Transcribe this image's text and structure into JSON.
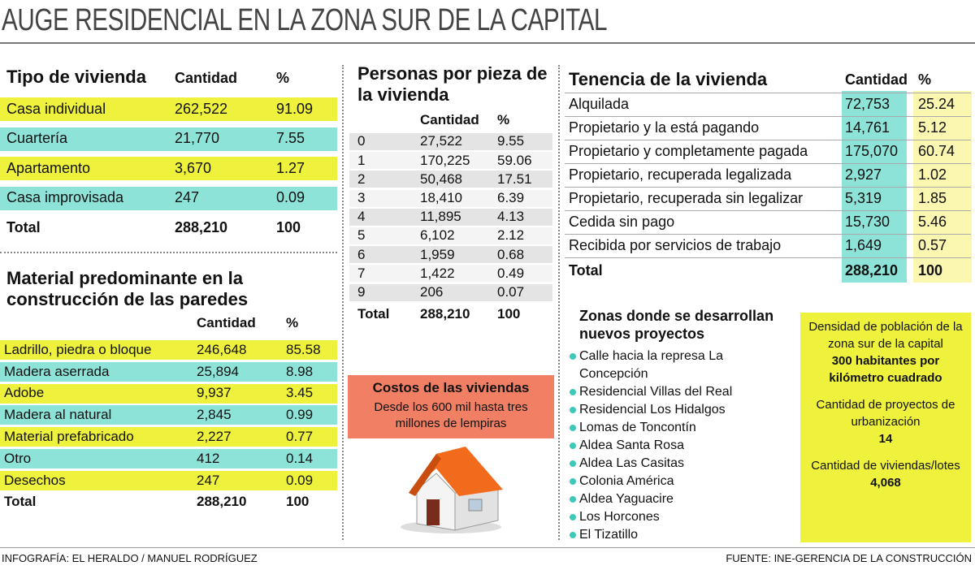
{
  "title": "AUGE RESIDENCIAL EN LA ZONA SUR DE LA CAPITAL",
  "tipo": {
    "title": "Tipo de vivienda",
    "headers": [
      "Cantidad",
      "%"
    ],
    "rows": [
      [
        "Casa individual",
        "262,522",
        "91.09"
      ],
      [
        "Cuartería",
        "21,770",
        "7.55"
      ],
      [
        "Apartamento",
        "3,670",
        "1.27"
      ],
      [
        "Casa improvisada",
        "247",
        "0.09"
      ]
    ],
    "total": [
      "Total",
      "288,210",
      "100"
    ]
  },
  "material": {
    "title": "Material predominante en la construcción de las paredes",
    "headers": [
      "Cantidad",
      "%"
    ],
    "rows": [
      [
        "Ladrillo, piedra o bloque",
        "246,648",
        "85.58"
      ],
      [
        "Madera aserrada",
        "25,894",
        "8.98"
      ],
      [
        "Adobe",
        "9,937",
        "3.45"
      ],
      [
        "Madera al natural",
        "2,845",
        "0.99"
      ],
      [
        "Material prefabricado",
        "2,227",
        "0.77"
      ],
      [
        "Otro",
        "412",
        "0.14"
      ],
      [
        "Desechos",
        "247",
        "0.09"
      ]
    ],
    "total": [
      "Total",
      "288,210",
      "100"
    ]
  },
  "personas": {
    "title": "Personas por pieza de la vivienda",
    "headers": [
      "Cantidad",
      "%"
    ],
    "rows": [
      [
        "0",
        "27,522",
        "9.55"
      ],
      [
        "1",
        "170,225",
        "59.06"
      ],
      [
        "2",
        "50,468",
        "17.51"
      ],
      [
        "3",
        "18,410",
        "6.39"
      ],
      [
        "4",
        "11,895",
        "4.13"
      ],
      [
        "5",
        "6,102",
        "2.12"
      ],
      [
        "6",
        "1,959",
        "0.68"
      ],
      [
        "7",
        "1,422",
        "0.49"
      ],
      [
        "9",
        "206",
        "0.07"
      ]
    ],
    "total": [
      "Total",
      "288,210",
      "100"
    ]
  },
  "costos": {
    "title": "Costos de las viviendas",
    "text": "Desde los 600 mil hasta tres millones de lempiras"
  },
  "tenencia": {
    "title": "Tenencia de la vivienda",
    "headers": [
      "Cantidad",
      "%"
    ],
    "rows": [
      [
        "Alquilada",
        "72,753",
        "25.24"
      ],
      [
        "Propietario y la está pagando",
        "14,761",
        "5.12"
      ],
      [
        "Propietario y completamente pagada",
        "175,070",
        "60.74"
      ],
      [
        "Propietario, recuperada legalizada",
        "2,927",
        "1.02"
      ],
      [
        "Propietario, recuperada sin legalizar",
        "5,319",
        "1.85"
      ],
      [
        "Cedida sin pago",
        "15,730",
        "5.46"
      ],
      [
        "Recibida por servicios de trabajo",
        "1,649",
        "0.57"
      ]
    ],
    "total": [
      "Total",
      "288,210",
      "100"
    ]
  },
  "zonas": {
    "title": "Zonas donde se desarrollan nuevos proyectos",
    "items": [
      "Calle hacia la represa La Concepción",
      "Residencial Villas del Real",
      "Residencial Los Hidalgos",
      "Lomas de Toncontín",
      "Aldea Santa Rosa",
      "Aldea Las Casitas",
      "Colonia América",
      "Aldea Yaguacire",
      "Los Horcones",
      "El Tizatillo"
    ]
  },
  "datos": [
    {
      "label": "Densidad de población de la zona sur de la capital",
      "value": "300 habitantes por kilómetro cuadrado"
    },
    {
      "label": "Cantidad de proyectos de urbanización",
      "value": "14"
    },
    {
      "label": "Cantidad de viviendas/lotes",
      "value": "4,068"
    }
  ],
  "footer": {
    "credit": "INFOGRAFÍA: EL HERALDO / MANUEL RODRÍGUEZ",
    "source": "FUENTE: INE-GERENCIA DE LA CONSTRUCCIÓN"
  }
}
